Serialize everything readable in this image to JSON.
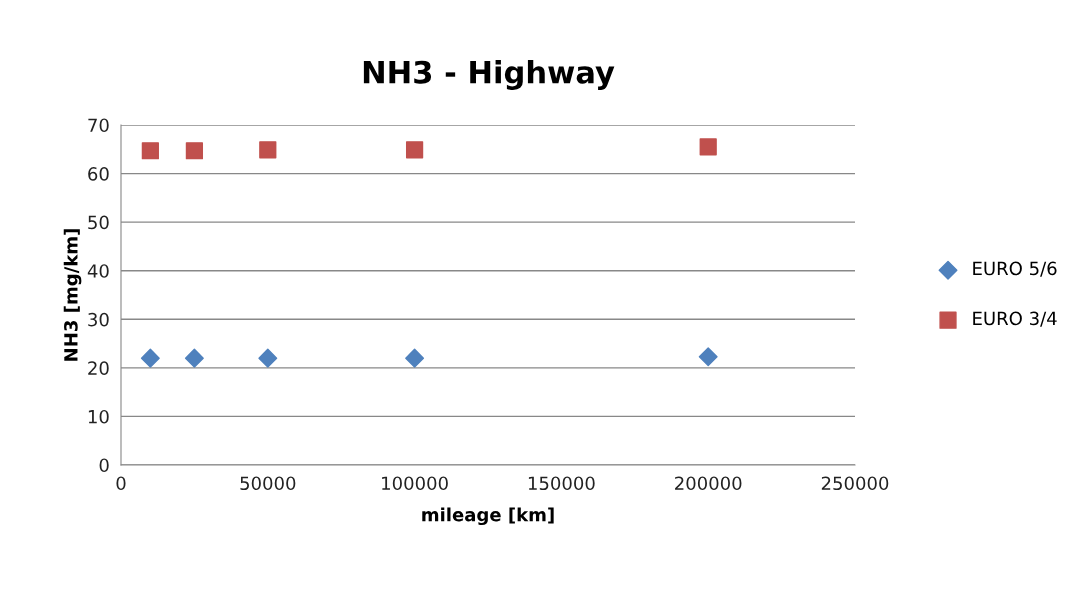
{
  "chart_data": {
    "type": "scatter",
    "title": "NH3 - Highway",
    "xlabel": "mileage [km]",
    "ylabel": "NH3 [mg/km]",
    "x": [
      10000,
      25000,
      50000,
      100000,
      200000
    ],
    "series": [
      {
        "name": "EURO 5/6",
        "color": "#4f81bd",
        "marker": "diamond",
        "values": [
          22,
          22,
          22,
          22,
          22.3
        ]
      },
      {
        "name": "EURO 3/4",
        "color": "#c0504d",
        "marker": "square",
        "values": [
          64.7,
          64.7,
          64.9,
          64.9,
          65.5
        ]
      }
    ],
    "xlim": [
      0,
      250000
    ],
    "xticks": [
      0,
      50000,
      100000,
      150000,
      200000,
      250000
    ],
    "ylim": [
      0,
      70
    ],
    "yticks": [
      0,
      10,
      20,
      30,
      40,
      50,
      60,
      70
    ],
    "grid": "y",
    "legend": "right"
  }
}
